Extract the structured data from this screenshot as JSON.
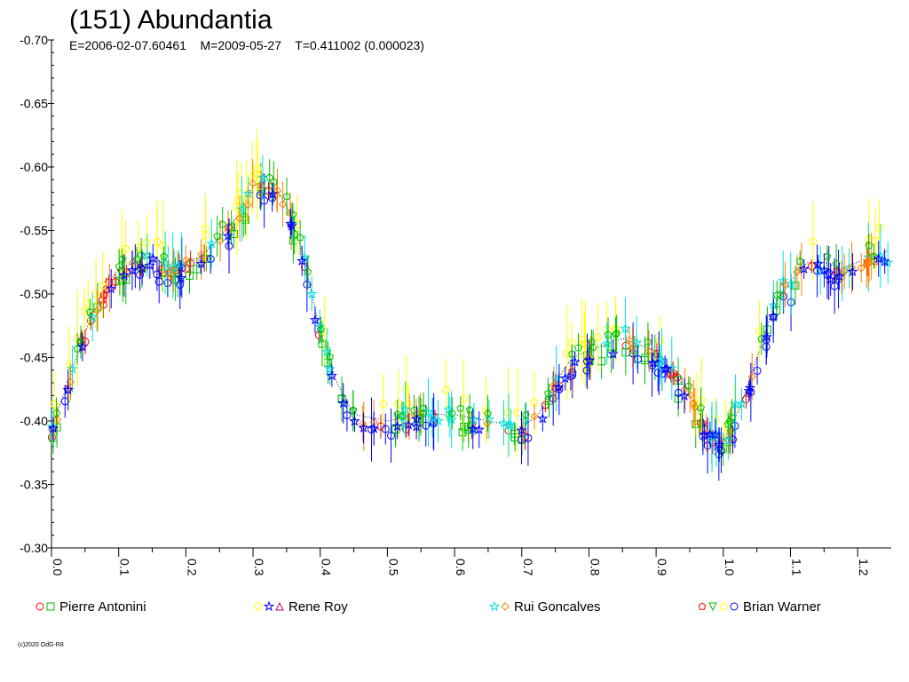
{
  "chart_data": {
    "type": "scatter",
    "title": "(151) Abundantia",
    "subtitle": "E=2006-02-07.60461    M=2009-05-27    T=0.411002 (0.000023)",
    "ylim": [
      -0.7,
      -0.3
    ],
    "y_reversed": true,
    "xlim": [
      0.0,
      1.25
    ],
    "grid": false,
    "legend_placement": "bottom",
    "y_ticks": [
      "-0.70",
      "-0.65",
      "-0.60",
      "-0.55",
      "-0.50",
      "-0.45",
      "-0.40",
      "-0.35",
      "-0.30"
    ],
    "y_tick_values": [
      -0.7,
      -0.65,
      -0.6,
      -0.55,
      -0.5,
      -0.45,
      -0.4,
      -0.35,
      -0.3
    ],
    "x_ticks": [
      "0.0",
      "0.1",
      "0.2",
      "0.3",
      "0.4",
      "0.5",
      "0.6",
      "0.7",
      "0.8",
      "0.9",
      "1.0",
      "1.1",
      "1.2"
    ],
    "x_tick_values": [
      0.0,
      0.1,
      0.2,
      0.3,
      0.4,
      0.5,
      0.6,
      0.7,
      0.8,
      0.9,
      1.0,
      1.1,
      1.2
    ],
    "mean_curve": {
      "phase": [
        0.0,
        0.025,
        0.05,
        0.075,
        0.1,
        0.125,
        0.15,
        0.175,
        0.2,
        0.225,
        0.25,
        0.275,
        0.3,
        0.325,
        0.35,
        0.375,
        0.4,
        0.425,
        0.45,
        0.5,
        0.55,
        0.6,
        0.65,
        0.7,
        0.725,
        0.75,
        0.775,
        0.8,
        0.825,
        0.85,
        0.875,
        0.9,
        0.925,
        0.95,
        0.975,
        1.0,
        1.025,
        1.05,
        1.075,
        1.1,
        1.125,
        1.15,
        1.175,
        1.2,
        1.225,
        1.25
      ],
      "mag": [
        -0.395,
        -0.43,
        -0.47,
        -0.5,
        -0.52,
        -0.525,
        -0.53,
        -0.52,
        -0.525,
        -0.53,
        -0.545,
        -0.56,
        -0.585,
        -0.59,
        -0.57,
        -0.53,
        -0.47,
        -0.43,
        -0.405,
        -0.4,
        -0.405,
        -0.405,
        -0.4,
        -0.395,
        -0.405,
        -0.43,
        -0.45,
        -0.455,
        -0.46,
        -0.465,
        -0.46,
        -0.455,
        -0.44,
        -0.42,
        -0.395,
        -0.385,
        -0.41,
        -0.45,
        -0.49,
        -0.51,
        -0.525,
        -0.525,
        -0.52,
        -0.525,
        -0.53,
        -0.535
      ]
    },
    "series": [
      {
        "name": "Pierre Antonini",
        "symbols": [
          "circle",
          "square"
        ],
        "colors": [
          "#ff0000",
          "#00c000"
        ]
      },
      {
        "name": "Rene Roy",
        "symbols": [
          "circle",
          "star",
          "triangle"
        ],
        "colors": [
          "#ffff00",
          "#0000ff",
          "#c00060"
        ]
      },
      {
        "name": "Rui Goncalves",
        "symbols": [
          "star",
          "diamond"
        ],
        "colors": [
          "#00e0e0",
          "#ff8000"
        ]
      },
      {
        "name": "Brian Warner",
        "symbols": [
          "pentagon",
          "triangle-down",
          "circle",
          "circle"
        ],
        "colors": [
          "#ff0000",
          "#00c000",
          "#ffff00",
          "#0000ff"
        ]
      }
    ],
    "segment_colors": [
      "#ff0000",
      "#00c000",
      "#ffff00",
      "#0000ff",
      "#00e0e0",
      "#ff8000"
    ]
  },
  "footer": {
    "copyright": "(c)2020 OdG-R8"
  }
}
